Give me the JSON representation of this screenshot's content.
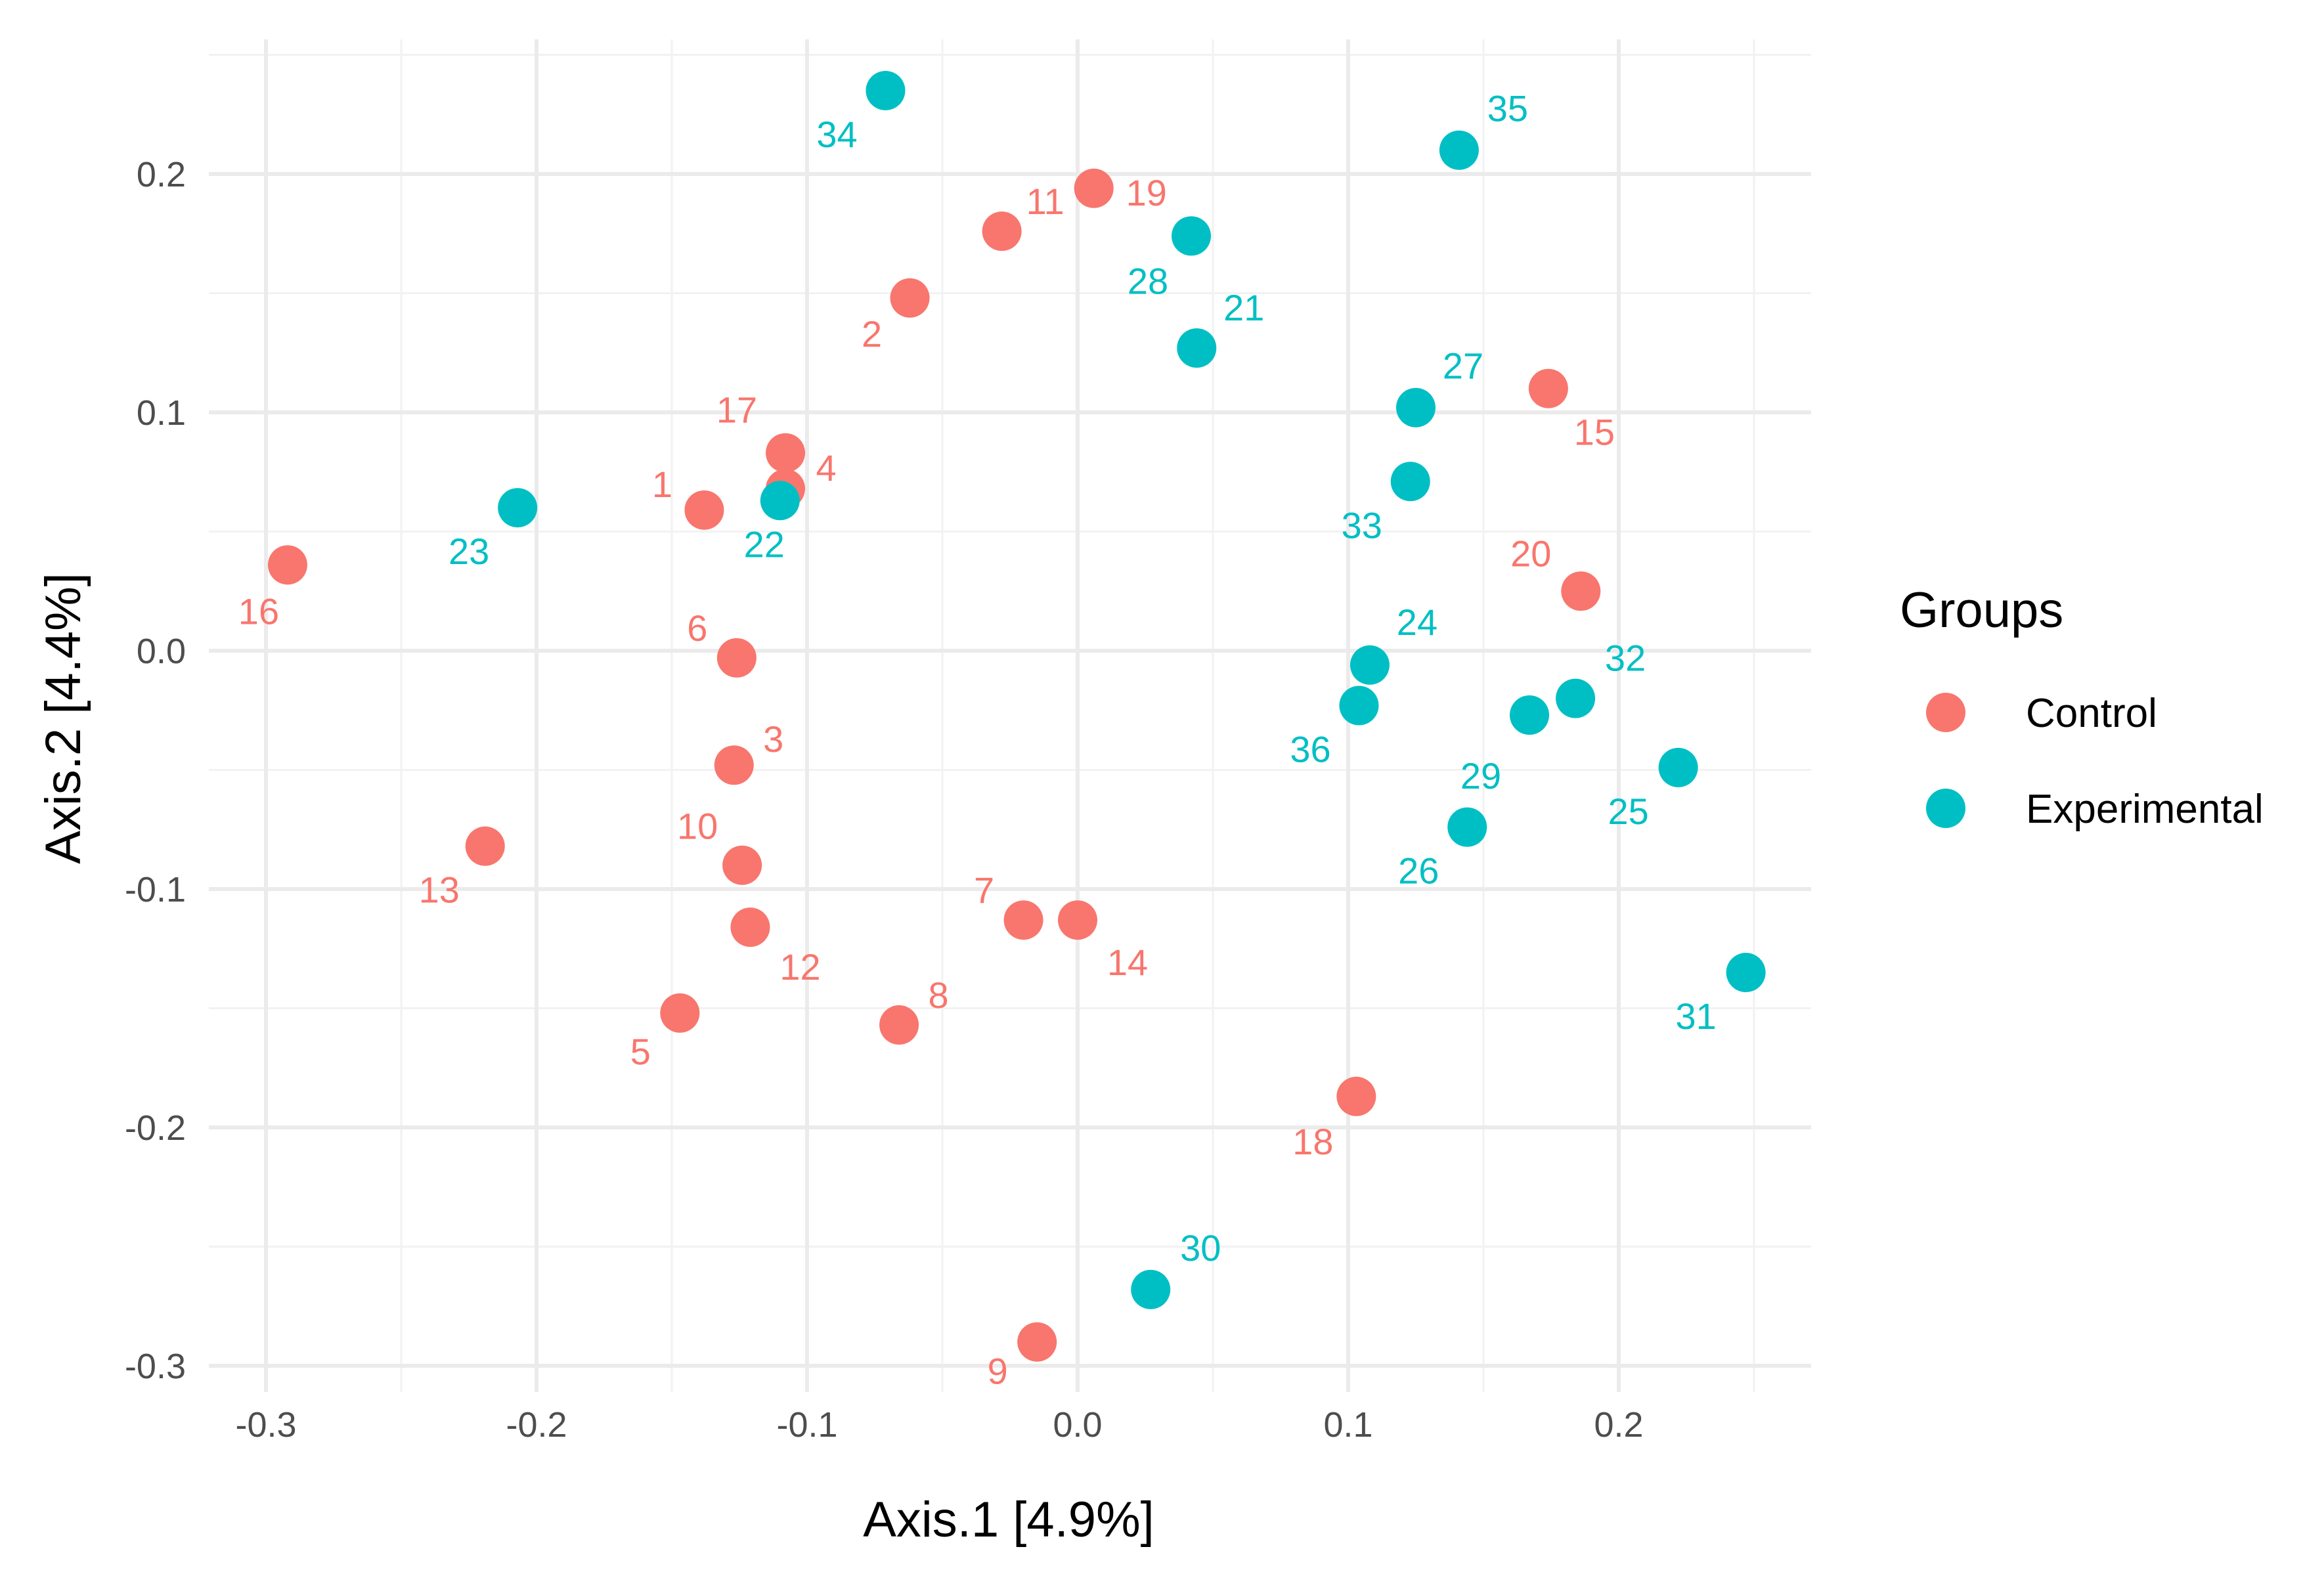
{
  "chart_data": {
    "type": "scatter",
    "title": "",
    "xlabel": "Axis.1   [4.9%]",
    "ylabel": "Axis.2   [4.4%]",
    "xlim": [
      -0.32,
      0.27
    ],
    "ylim": [
      -0.31,
      0.25
    ],
    "x_ticks": [
      -0.3,
      -0.2,
      -0.1,
      0.0,
      0.1,
      0.2
    ],
    "x_tick_labels": [
      "-0.3",
      "-0.2",
      "-0.1",
      "0.0",
      "0.1",
      "0.2"
    ],
    "y_ticks": [
      -0.3,
      -0.2,
      -0.1,
      0.0,
      0.1,
      0.2
    ],
    "y_tick_labels": [
      "-0.3",
      "-0.2",
      "-0.1",
      "0.0",
      "0.1",
      "0.2"
    ],
    "grid": true,
    "legend": {
      "title": "Groups",
      "placement": "right",
      "entries": [
        {
          "name": "Control",
          "color": "#F8766D"
        },
        {
          "name": "Experimental",
          "color": "#00BFC4"
        }
      ]
    },
    "series": [
      {
        "name": "Control",
        "color": "#F8766D",
        "points": [
          {
            "label": "1",
            "x": -0.138,
            "y": 0.059
          },
          {
            "label": "2",
            "x": -0.062,
            "y": 0.148
          },
          {
            "label": "3",
            "x": -0.127,
            "y": -0.048
          },
          {
            "label": "4",
            "x": -0.108,
            "y": 0.068
          },
          {
            "label": "5",
            "x": -0.147,
            "y": -0.152
          },
          {
            "label": "6",
            "x": -0.126,
            "y": -0.003
          },
          {
            "label": "7",
            "x": -0.02,
            "y": -0.113
          },
          {
            "label": "8",
            "x": -0.066,
            "y": -0.157
          },
          {
            "label": "9",
            "x": -0.015,
            "y": -0.29
          },
          {
            "label": "10",
            "x": -0.124,
            "y": -0.09
          },
          {
            "label": "11",
            "x": -0.028,
            "y": 0.176
          },
          {
            "label": "12",
            "x": -0.121,
            "y": -0.116
          },
          {
            "label": "13",
            "x": -0.219,
            "y": -0.082
          },
          {
            "label": "14",
            "x": 0.0,
            "y": -0.113
          },
          {
            "label": "15",
            "x": 0.174,
            "y": 0.11
          },
          {
            "label": "16",
            "x": -0.292,
            "y": 0.036
          },
          {
            "label": "17",
            "x": -0.108,
            "y": 0.083
          },
          {
            "label": "18",
            "x": 0.103,
            "y": -0.187
          },
          {
            "label": "19",
            "x": 0.006,
            "y": 0.194
          },
          {
            "label": "20",
            "x": 0.186,
            "y": 0.025
          }
        ]
      },
      {
        "name": "Experimental",
        "color": "#00BFC4",
        "points": [
          {
            "label": "21",
            "x": 0.044,
            "y": 0.127
          },
          {
            "label": "22",
            "x": -0.11,
            "y": 0.063
          },
          {
            "label": "23",
            "x": -0.207,
            "y": 0.06
          },
          {
            "label": "24",
            "x": 0.108,
            "y": -0.006
          },
          {
            "label": "25",
            "x": 0.222,
            "y": -0.049
          },
          {
            "label": "26",
            "x": 0.144,
            "y": -0.074
          },
          {
            "label": "27",
            "x": 0.125,
            "y": 0.102
          },
          {
            "label": "28",
            "x": 0.042,
            "y": 0.174
          },
          {
            "label": "29",
            "x": 0.167,
            "y": -0.027
          },
          {
            "label": "30",
            "x": 0.027,
            "y": -0.268
          },
          {
            "label": "31",
            "x": 0.247,
            "y": -0.135
          },
          {
            "label": "32",
            "x": 0.184,
            "y": -0.02
          },
          {
            "label": "33",
            "x": 0.123,
            "y": 0.071
          },
          {
            "label": "34",
            "x": -0.071,
            "y": 0.235
          },
          {
            "label": "35",
            "x": 0.141,
            "y": 0.21
          },
          {
            "label": "36",
            "x": 0.104,
            "y": -0.023
          }
        ]
      }
    ]
  }
}
